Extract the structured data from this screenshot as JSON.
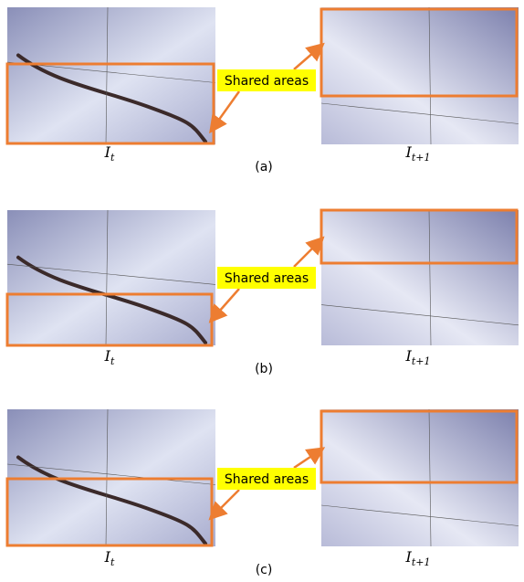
{
  "panels": [
    {
      "label": "(a)",
      "left_caption": {
        "base": "I",
        "sub": "t"
      },
      "right_caption": {
        "base": "I",
        "sub": "t+1"
      },
      "shared_label": "Shared areas"
    },
    {
      "label": "(b)",
      "left_caption": {
        "base": "I",
        "sub": "t"
      },
      "right_caption": {
        "base": "I",
        "sub": "t+1"
      },
      "shared_label": "Shared areas"
    },
    {
      "label": "(c)",
      "left_caption": {
        "base": "I",
        "sub": "t"
      },
      "right_caption": {
        "base": "I",
        "sub": "t+1"
      },
      "shared_label": "Shared areas"
    }
  ]
}
